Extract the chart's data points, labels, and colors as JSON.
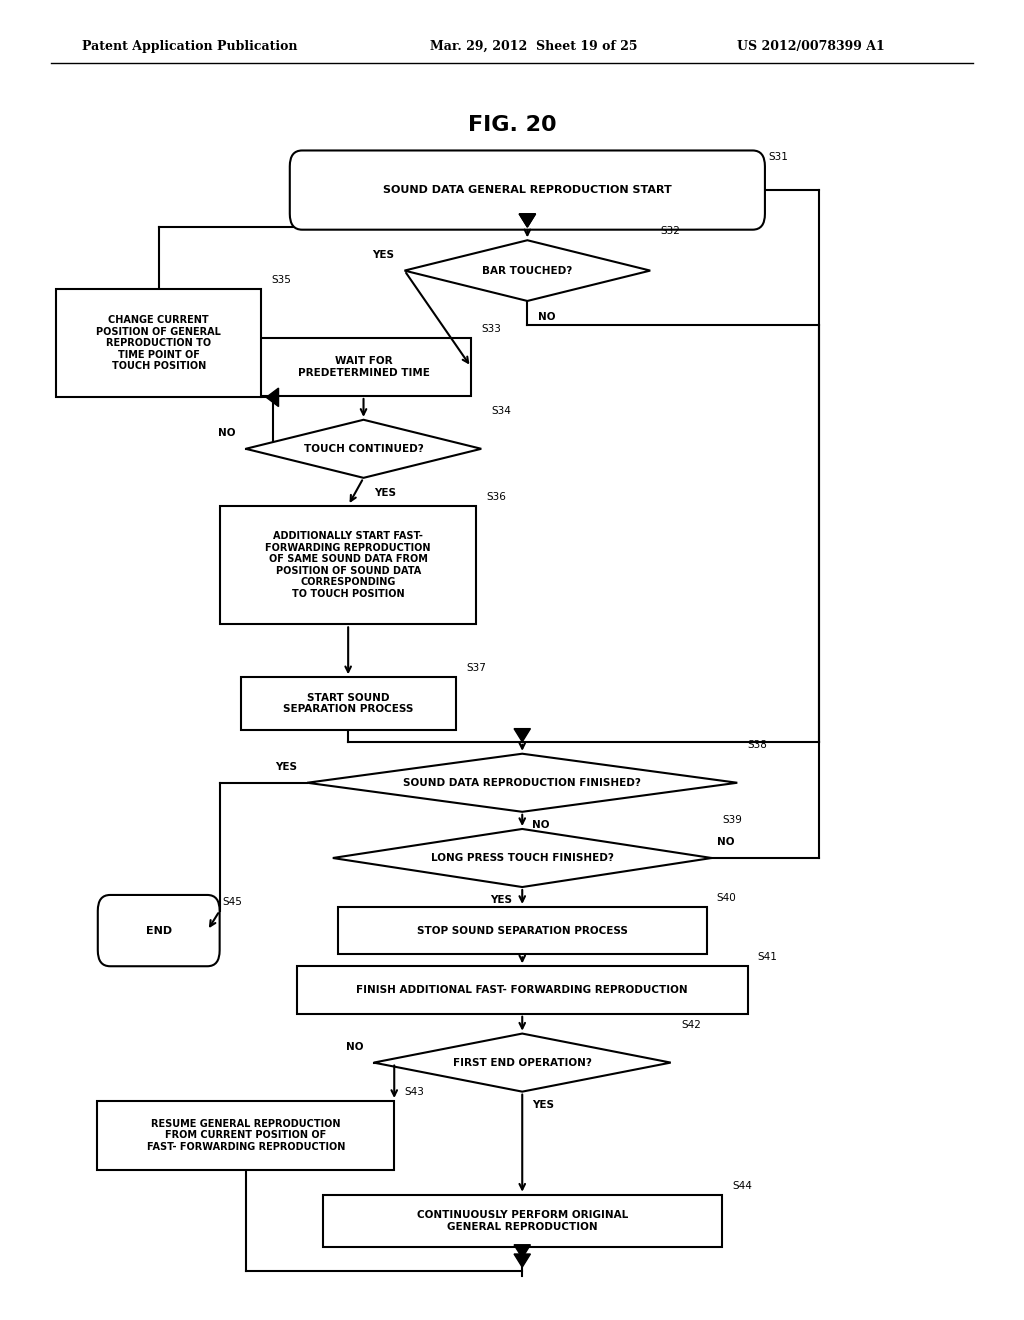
{
  "header_left": "Patent Application Publication",
  "header_mid": "Mar. 29, 2012  Sheet 19 of 25",
  "header_right": "US 2012/0078399 A1",
  "fig_title": "FIG. 20"
}
